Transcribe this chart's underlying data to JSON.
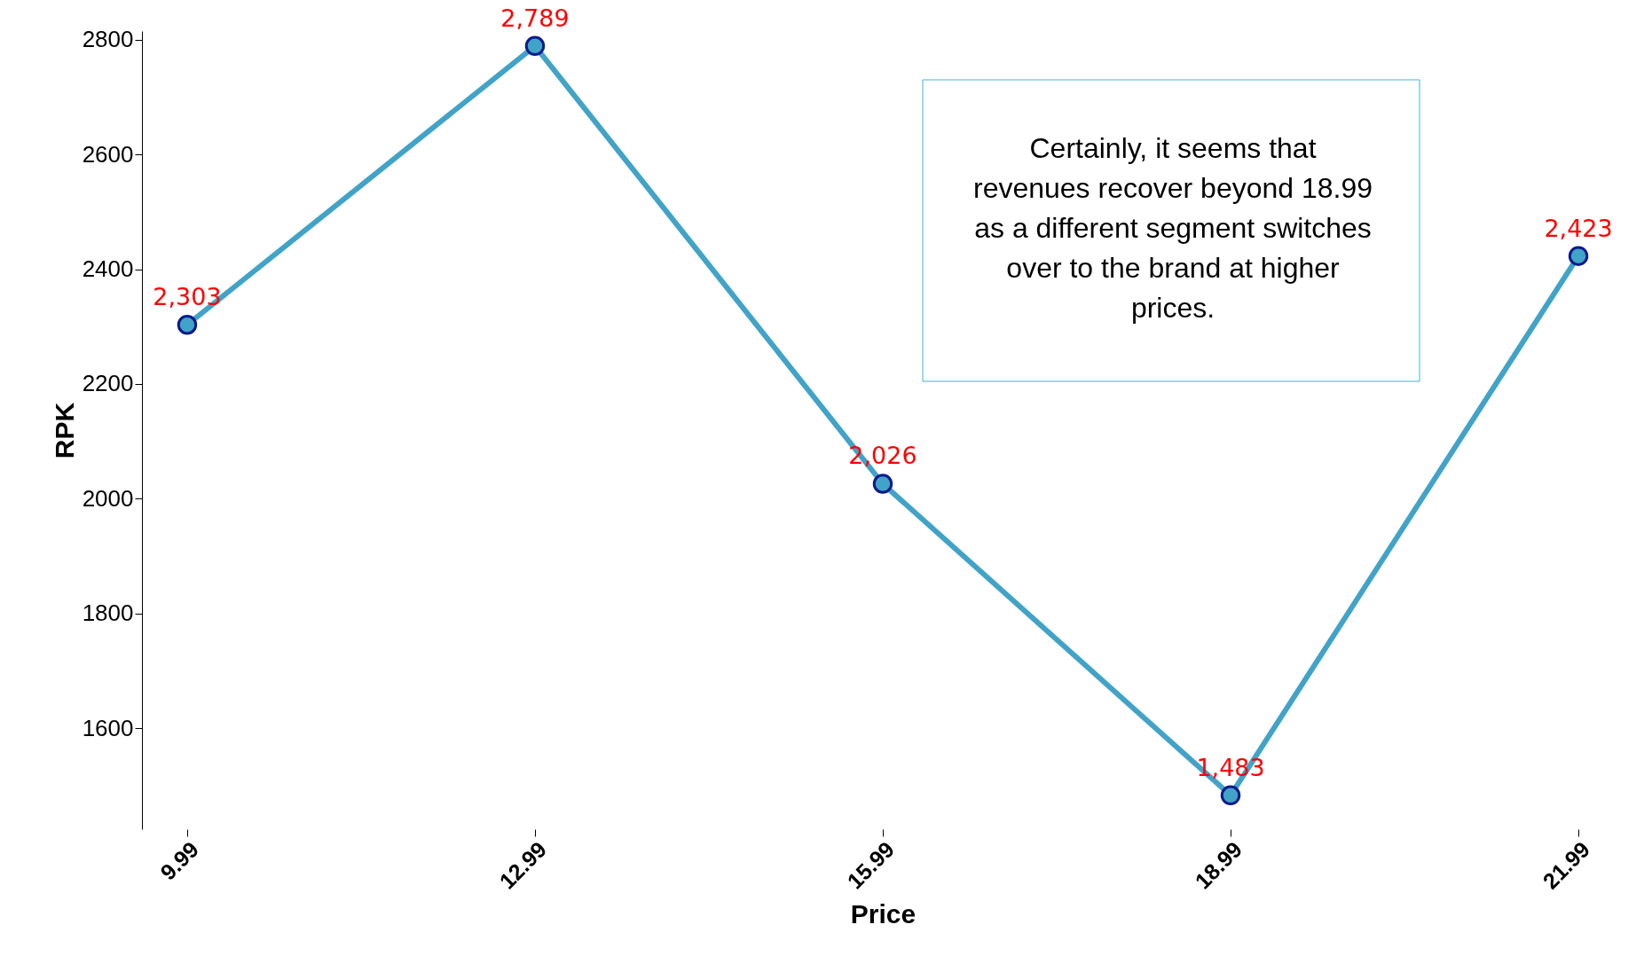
{
  "chart_data": {
    "type": "line",
    "xlabel": "Price",
    "ylabel": "RPK",
    "categories": [
      "9.99",
      "12.99",
      "15.99",
      "18.99",
      "21.99"
    ],
    "series": [
      {
        "color": "#41a3c8",
        "values": [
          2303,
          2789,
          2026,
          1483,
          2423
        ]
      }
    ],
    "value_labels": [
      "2,303",
      "2,789",
      "2,026",
      "1,483",
      "2,423"
    ],
    "ylim": [
      1424,
      2815
    ],
    "yticks": [
      1600,
      1800,
      2000,
      2200,
      2400,
      2600,
      2800
    ],
    "marker": "circle",
    "line_style": "solid",
    "grid": false,
    "annotations": [
      "Certainly, it seems that revenues recover beyond 18.99 as a different segment switches over to the brand at higher prices."
    ]
  }
}
